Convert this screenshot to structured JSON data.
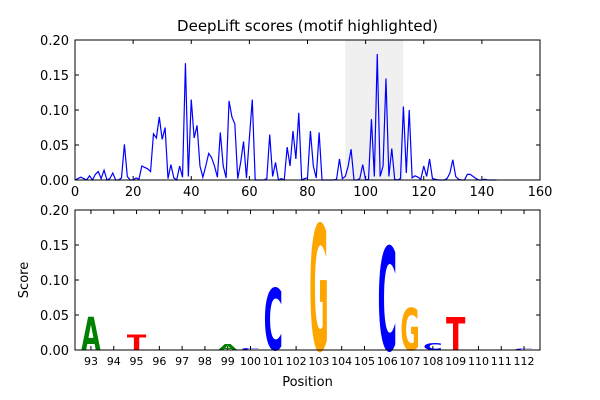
{
  "chart_data": [
    {
      "type": "line",
      "title": "DeepLift scores (motif highlighted)",
      "color": "#0000ff",
      "highlight": [
        93,
        113
      ],
      "highlight_color": "#d9d9d9",
      "x": [
        0,
        1,
        2,
        3,
        4,
        5,
        6,
        7,
        8,
        9,
        10,
        11,
        12,
        13,
        14,
        15,
        16,
        17,
        18,
        19,
        20,
        21,
        22,
        23,
        24,
        25,
        26,
        27,
        28,
        29,
        30,
        31,
        32,
        33,
        34,
        35,
        36,
        37,
        38,
        39,
        40,
        41,
        42,
        43,
        44,
        45,
        46,
        47,
        48,
        49,
        50,
        51,
        52,
        53,
        54,
        55,
        56,
        57,
        58,
        59,
        60,
        61,
        62,
        63,
        64,
        65,
        66,
        67,
        68,
        69,
        70,
        71,
        72,
        73,
        74,
        75,
        76,
        77,
        78,
        79,
        80,
        81,
        82,
        83,
        84,
        85,
        86,
        87,
        88,
        89,
        90,
        91,
        92,
        93,
        94,
        95,
        96,
        97,
        98,
        99,
        100,
        101,
        102,
        103,
        104,
        105,
        106,
        107,
        108,
        109,
        110,
        111,
        112,
        113,
        114,
        115,
        116,
        117,
        118,
        119,
        120,
        121,
        122,
        123,
        124,
        125,
        126,
        127,
        128,
        129,
        130,
        131,
        132,
        133,
        134,
        135,
        136,
        137,
        138,
        139,
        140,
        141,
        142,
        143,
        144,
        145
      ],
      "values": [
        0,
        0.002,
        0.004,
        0.002,
        0,
        0.006,
        0,
        0.008,
        0.012,
        0.002,
        0.014,
        0,
        0.002,
        0.01,
        0,
        0,
        0.003,
        0.051,
        0.005,
        0,
        0,
        0.003,
        0.001,
        0.02,
        0.018,
        0.016,
        0.012,
        0.066,
        0.06,
        0.09,
        0.058,
        0.075,
        0.002,
        0.022,
        0.003,
        0,
        0.02,
        0.004,
        0.167,
        0.005,
        0.115,
        0.06,
        0.078,
        0.02,
        0.004,
        0.02,
        0.038,
        0.032,
        0.02,
        0.004,
        0.068,
        0.02,
        0.003,
        0.113,
        0.09,
        0.08,
        0.002,
        0.025,
        0.055,
        0.003,
        0.06,
        0.115,
        0,
        0,
        0,
        0,
        0.002,
        0.065,
        0.005,
        0.025,
        0,
        0.002,
        0,
        0.047,
        0.02,
        0.07,
        0.03,
        0.096,
        0,
        0.002,
        0.003,
        0.07,
        0.02,
        0.003,
        0.068,
        0,
        0,
        0,
        0,
        0,
        0.001,
        0.03,
        0.002,
        0.005,
        0.02,
        0.044,
        0,
        0,
        0.002,
        0.022,
        0,
        0.001,
        0.087,
        0.005,
        0.18,
        0.005,
        0.02,
        0.145,
        0.005,
        0.045,
        0.001,
        0,
        0.002,
        0.105,
        0.01,
        0.1,
        0.003,
        0.006,
        0.004,
        0.001,
        0.02,
        0.005,
        0.03,
        0.002,
        0.001,
        0,
        0,
        0,
        0.002,
        0.01,
        0.029,
        0.005,
        0.001,
        0,
        0,
        0.008,
        0.008,
        0.005,
        0.002,
        0,
        0,
        0.001,
        0,
        0,
        0,
        0
      ],
      "xlim": [
        0,
        160
      ],
      "xticks": [
        0,
        20,
        40,
        60,
        80,
        100,
        120,
        140,
        160
      ],
      "ylim": [
        0,
        0.2
      ],
      "yticks": [
        {
          "value": 0,
          "label": "0.00"
        },
        {
          "value": 0.05,
          "label": "0.05"
        },
        {
          "value": 0.1,
          "label": "0.10"
        },
        {
          "value": 0.15,
          "label": "0.15"
        },
        {
          "value": 0.2,
          "label": "0.20"
        }
      ]
    },
    {
      "type": "logo",
      "xlabel": "Position",
      "ylabel": "Score",
      "letter_colors": {
        "A": "#008000",
        "C": "#0000ff",
        "G": "#ffa500",
        "T": "#ff0000"
      },
      "x": [
        93,
        95,
        99,
        100,
        101,
        103,
        106,
        107,
        108,
        109,
        112
      ],
      "letters": [
        "A",
        "T",
        "A",
        "C",
        "C",
        "G",
        "C",
        "G",
        "C",
        "T",
        "C"
      ],
      "values": [
        0.047,
        0.022,
        0.008,
        0.003,
        0.088,
        0.18,
        0.148,
        0.06,
        0.01,
        0.047,
        0.002
      ],
      "xlim": [
        92.3,
        112.7
      ],
      "xticks": [
        93,
        94,
        95,
        96,
        97,
        98,
        99,
        100,
        101,
        102,
        103,
        104,
        105,
        106,
        107,
        108,
        109,
        110,
        111,
        112
      ],
      "ylim": [
        0,
        0.2
      ],
      "yticks": [
        {
          "value": 0,
          "label": "0.00"
        },
        {
          "value": 0.05,
          "label": "0.05"
        },
        {
          "value": 0.1,
          "label": "0.10"
        },
        {
          "value": 0.15,
          "label": "0.15"
        },
        {
          "value": 0.2,
          "label": "0.20"
        }
      ]
    }
  ]
}
